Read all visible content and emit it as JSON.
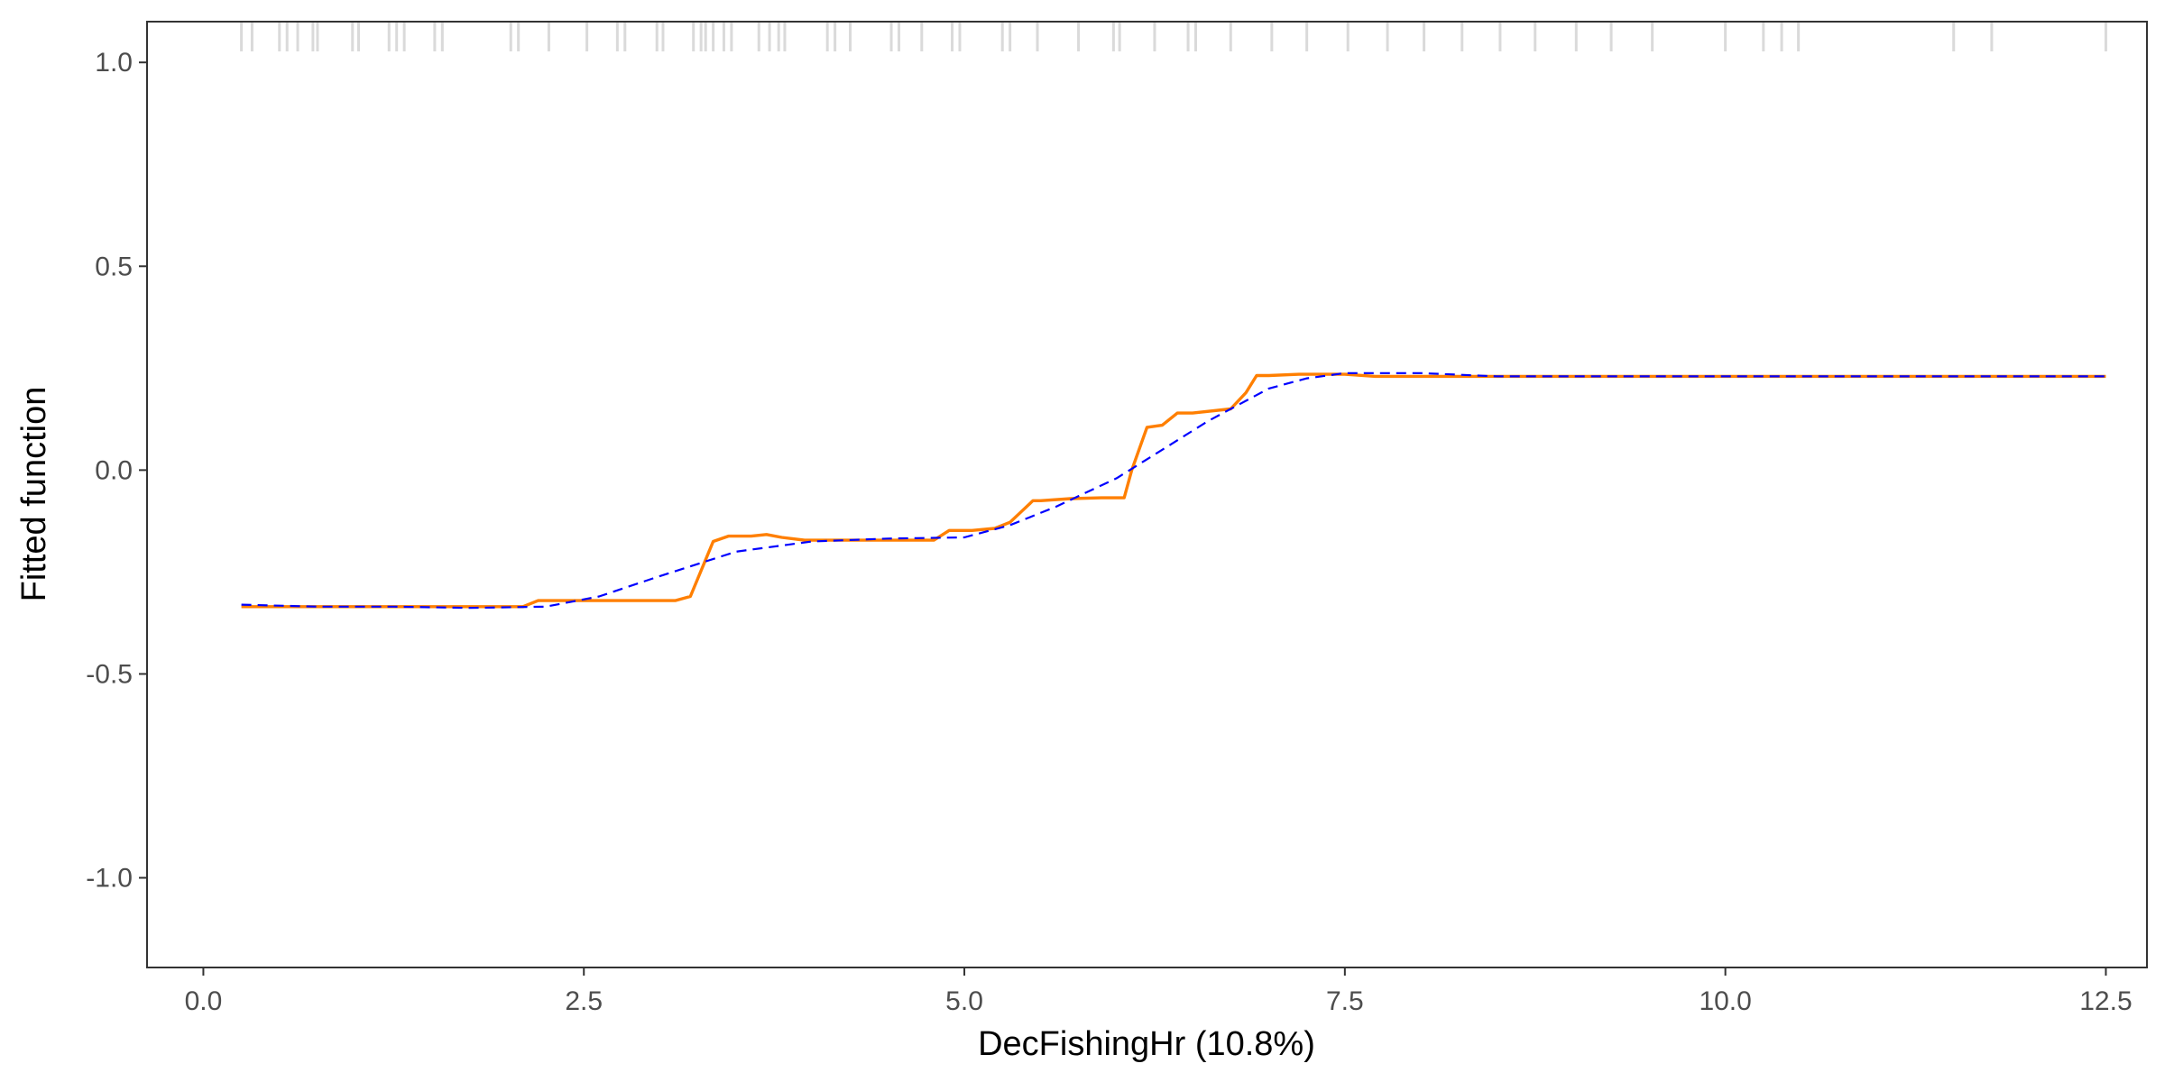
{
  "chart_data": {
    "type": "line",
    "title": "",
    "xlabel": "DecFishingHr  (10.8%)",
    "ylabel": "Fitted function",
    "xlim": [
      -0.37,
      12.77
    ],
    "ylim": [
      -1.22,
      1.1
    ],
    "x_ticks": [
      0.0,
      2.5,
      5.0,
      7.5,
      10.0,
      12.5
    ],
    "x_tick_labels": [
      "0.0",
      "2.5",
      "5.0",
      "7.5",
      "10.0",
      "12.5"
    ],
    "y_ticks": [
      -1.0,
      -0.5,
      0.0,
      0.5,
      1.0
    ],
    "y_tick_labels": [
      "-1.0",
      "-0.5",
      "0.0",
      "0.5",
      "1.0"
    ],
    "grid": false,
    "rug_x": [
      0.25,
      0.32,
      0.5,
      0.55,
      0.62,
      0.72,
      0.75,
      0.98,
      1.02,
      1.22,
      1.27,
      1.32,
      1.52,
      1.57,
      2.02,
      2.07,
      2.27,
      2.52,
      2.72,
      2.77,
      2.98,
      3.02,
      3.22,
      3.27,
      3.3,
      3.35,
      3.42,
      3.47,
      3.65,
      3.72,
      3.78,
      3.82,
      4.1,
      4.15,
      4.25,
      4.52,
      4.57,
      4.72,
      4.92,
      4.97,
      5.25,
      5.3,
      5.48,
      5.75,
      5.98,
      6.02,
      6.25,
      6.47,
      6.52,
      6.75,
      7.02,
      7.25,
      7.52,
      7.78,
      8.02,
      8.27,
      8.52,
      8.75,
      9.02,
      9.25,
      9.52,
      10.0,
      10.25,
      10.37,
      10.48,
      11.5,
      11.75,
      12.5
    ],
    "series": [
      {
        "style": "solid",
        "color": "#FF7F00",
        "x": [
          0.25,
          0.6,
          1.0,
          1.5,
          2.0,
          2.1,
          2.2,
          2.5,
          2.8,
          3.1,
          3.2,
          3.3,
          3.35,
          3.45,
          3.6,
          3.7,
          3.8,
          3.95,
          4.2,
          4.5,
          4.8,
          4.9,
          5.05,
          5.2,
          5.3,
          5.45,
          5.5,
          5.7,
          5.9,
          6.05,
          6.1,
          6.2,
          6.3,
          6.4,
          6.5,
          6.75,
          6.85,
          6.92,
          7.0,
          7.2,
          7.5,
          7.7,
          8.0,
          9.0,
          10.0,
          11.0,
          12.0,
          12.5
        ],
        "y": [
          -0.335,
          -0.335,
          -0.335,
          -0.335,
          -0.335,
          -0.335,
          -0.32,
          -0.32,
          -0.32,
          -0.32,
          -0.31,
          -0.22,
          -0.175,
          -0.162,
          -0.162,
          -0.158,
          -0.165,
          -0.172,
          -0.172,
          -0.172,
          -0.172,
          -0.148,
          -0.148,
          -0.143,
          -0.128,
          -0.075,
          -0.075,
          -0.07,
          -0.068,
          -0.068,
          0.0,
          0.105,
          0.11,
          0.14,
          0.14,
          0.15,
          0.19,
          0.232,
          0.232,
          0.235,
          0.235,
          0.23,
          0.23,
          0.23,
          0.23,
          0.23,
          0.23,
          0.23
        ]
      },
      {
        "style": "dashed",
        "color": "#0000FF",
        "x": [
          0.25,
          0.75,
          1.25,
          1.75,
          2.25,
          2.6,
          3.0,
          3.5,
          4.0,
          4.5,
          5.0,
          5.3,
          5.6,
          6.0,
          6.3,
          6.6,
          7.0,
          7.25,
          7.5,
          8.0,
          8.5,
          9.0,
          10.0,
          11.0,
          12.0,
          12.5
        ],
        "y": [
          -0.33,
          -0.335,
          -0.335,
          -0.338,
          -0.335,
          -0.31,
          -0.26,
          -0.2,
          -0.175,
          -0.168,
          -0.165,
          -0.135,
          -0.09,
          -0.02,
          0.05,
          0.12,
          0.2,
          0.225,
          0.238,
          0.238,
          0.23,
          0.23,
          0.23,
          0.23,
          0.23,
          0.23
        ]
      }
    ]
  }
}
